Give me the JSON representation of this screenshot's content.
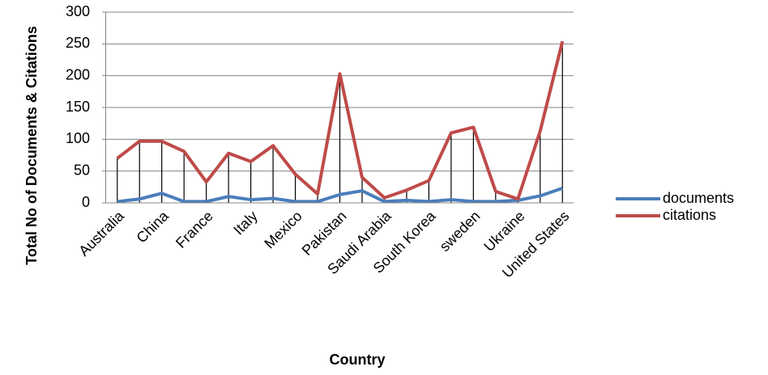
{
  "chart_data": {
    "type": "line",
    "xlabel": "Country",
    "ylabel": "Total No of Documents & Citations",
    "categories": [
      "Australia",
      null,
      "China",
      null,
      "France",
      null,
      "Italy",
      null,
      "Mexico",
      null,
      "Pakistan",
      null,
      "Saudi Arabia",
      null,
      "South Korea",
      null,
      "sweden",
      null,
      "Ukraine",
      null,
      "United States"
    ],
    "series": [
      {
        "name": "documents",
        "color": "#4a7ebb",
        "values": [
          2,
          6,
          15,
          2,
          2,
          10,
          5,
          7,
          2,
          2,
          13,
          19,
          2,
          4,
          2,
          5,
          2,
          2,
          4,
          11,
          23
        ]
      },
      {
        "name": "citations",
        "color": "#be4b48",
        "values": [
          70,
          97,
          97,
          81,
          33,
          78,
          65,
          90,
          45,
          14,
          203,
          40,
          8,
          20,
          35,
          110,
          119,
          18,
          6,
          113,
          254
        ]
      }
    ],
    "ylim": [
      0,
      300
    ],
    "yticks": [
      0,
      50,
      100,
      150,
      200,
      250,
      300
    ],
    "grid": true,
    "drop_lines": true,
    "legend": "right"
  }
}
